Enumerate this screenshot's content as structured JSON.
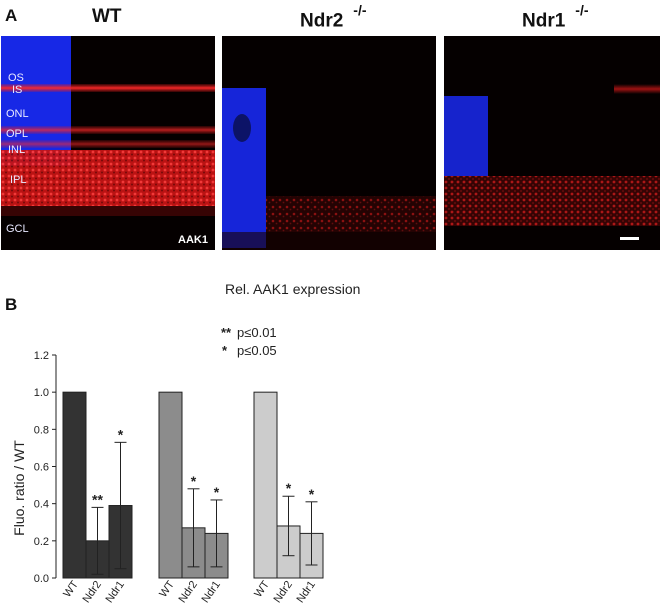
{
  "panel_a": {
    "letter": "A",
    "columns": [
      {
        "name": "WT",
        "superscript": ""
      },
      {
        "name": "Ndr2",
        "superscript": "-/-"
      },
      {
        "name": "Ndr1",
        "superscript": "-/-"
      }
    ],
    "layer_labels": [
      "OS",
      "IS",
      "ONL",
      "OPL",
      "INL",
      "IPL",
      "GCL"
    ],
    "stain_label": "AAK1",
    "colors": {
      "nuclear_stain": "#1a2cff",
      "aak1_stain": "#e01a1a",
      "background": "#050000"
    }
  },
  "chart_data": {
    "type": "bar",
    "panel_letter": "B",
    "title": "Rel. AAK1 expression",
    "ylabel": "Fluo. ratio / WT",
    "ylim": [
      0,
      1.2
    ],
    "yticks": [
      "0.0",
      "0.2",
      "0.4",
      "0.6",
      "0.8",
      "1.0",
      "1.2"
    ],
    "legend": [
      {
        "symbol": "**",
        "text": "p≤0.01"
      },
      {
        "symbol": "*",
        "text": "p≤0.05"
      }
    ],
    "groups": [
      {
        "color": "#333333",
        "bars": [
          {
            "category": "WT",
            "value": 1.0,
            "error": 0,
            "sig": ""
          },
          {
            "category": "Ndr2",
            "value": 0.2,
            "error": 0.18,
            "sig": "**"
          },
          {
            "category": "Ndr1",
            "value": 0.39,
            "error": 0.34,
            "sig": "*"
          }
        ]
      },
      {
        "color": "#8c8c8c",
        "bars": [
          {
            "category": "WT",
            "value": 1.0,
            "error": 0,
            "sig": ""
          },
          {
            "category": "Ndr2",
            "value": 0.27,
            "error": 0.21,
            "sig": "*"
          },
          {
            "category": "Ndr1",
            "value": 0.24,
            "error": 0.18,
            "sig": "*"
          }
        ]
      },
      {
        "color": "#cccccc",
        "bars": [
          {
            "category": "WT",
            "value": 1.0,
            "error": 0,
            "sig": ""
          },
          {
            "category": "Ndr2",
            "value": 0.28,
            "error": 0.16,
            "sig": "*"
          },
          {
            "category": "Ndr1",
            "value": 0.24,
            "error": 0.17,
            "sig": "*"
          }
        ]
      }
    ]
  }
}
